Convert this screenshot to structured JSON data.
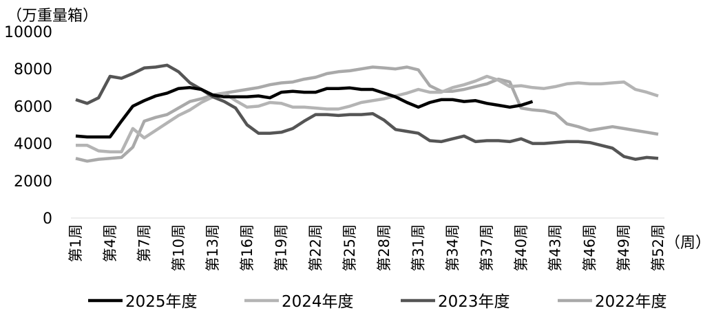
{
  "chart_data": {
    "type": "line",
    "ylabel": "（万重量箱）",
    "xlabel": "（周）",
    "ylim": [
      0,
      10000
    ],
    "yticks": [
      "0",
      "2000",
      "4000",
      "6000",
      "8000",
      "10000"
    ],
    "xtick_labels": [
      "第1周",
      "第4周",
      "第7周",
      "第10周",
      "第13周",
      "第16周",
      "第19周",
      "第22周",
      "第25周",
      "第28周",
      "第31周",
      "第34周",
      "第37周",
      "第40周",
      "第43周",
      "第46周",
      "第49周",
      "第52周"
    ],
    "xtick_weeks": [
      1,
      4,
      7,
      10,
      13,
      16,
      19,
      22,
      25,
      28,
      31,
      34,
      37,
      40,
      43,
      46,
      49,
      52
    ],
    "x_range": [
      1,
      52
    ],
    "grid": false,
    "legend": "bottom",
    "series": [
      {
        "name": "2025年度",
        "color": "#000000",
        "values": [
          4400,
          4350,
          4350,
          4350,
          5200,
          6000,
          6300,
          6550,
          6700,
          6950,
          7000,
          6900,
          6600,
          6500,
          6500,
          6500,
          6550,
          6450,
          6750,
          6800,
          6750,
          6750,
          6950,
          6950,
          6980,
          6900,
          6900,
          6700,
          6500,
          6200,
          5950,
          6200,
          6350,
          6350,
          6250,
          6300,
          6150,
          6050,
          5950,
          6050,
          6250
        ]
      },
      {
        "name": "2024年度",
        "color": "#b4b4b4",
        "values": [
          3900,
          3900,
          3600,
          3550,
          3550,
          4800,
          4300,
          4700,
          5100,
          5500,
          5800,
          6200,
          6500,
          6700,
          6300,
          5950,
          6000,
          6200,
          6150,
          5950,
          5950,
          5900,
          5850,
          5850,
          6000,
          6200,
          6300,
          6400,
          6550,
          6700,
          6900,
          6750,
          6750,
          7000,
          7150,
          7350,
          7600,
          7400,
          7050,
          7100,
          7000,
          6950,
          7050,
          7200,
          7250,
          7200,
          7200,
          7250,
          7300,
          6900,
          6750,
          6550
        ]
      },
      {
        "name": "2023年度",
        "color": "#555555",
        "values": [
          6350,
          6150,
          6450,
          7600,
          7500,
          7750,
          8050,
          8100,
          8200,
          7850,
          7250,
          6900,
          6500,
          6250,
          5900,
          5000,
          4550,
          4550,
          4600,
          4800,
          5200,
          5550,
          5550,
          5500,
          5550,
          5550,
          5600,
          5250,
          4750,
          4650,
          4550,
          4150,
          4100,
          4250,
          4400,
          4100,
          4150,
          4150,
          4100,
          4250,
          4000,
          4000,
          4050,
          4100,
          4100,
          4050,
          3900,
          3750,
          3300,
          3150,
          3250,
          3200
        ]
      },
      {
        "name": "2022年度",
        "color": "#a9a9a9",
        "values": [
          3200,
          3050,
          3150,
          3200,
          3250,
          3800,
          5200,
          5400,
          5550,
          5900,
          6250,
          6400,
          6600,
          6700,
          6800,
          6900,
          7000,
          7150,
          7250,
          7300,
          7450,
          7550,
          7750,
          7850,
          7900,
          8000,
          8100,
          8050,
          8000,
          8100,
          7950,
          7100,
          6800,
          6800,
          6900,
          7050,
          7200,
          7450,
          7300,
          5900,
          5800,
          5750,
          5600,
          5050,
          4900,
          4700,
          4800,
          4900,
          4800,
          4700,
          4600,
          4500
        ]
      }
    ]
  }
}
